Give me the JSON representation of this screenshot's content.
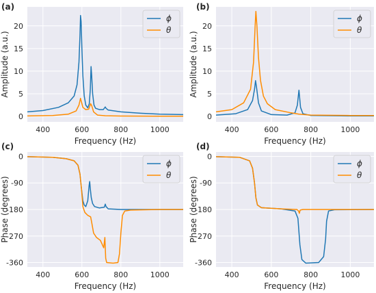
{
  "chart_data": [
    {
      "type": "line",
      "panel_label": "(a)",
      "xlabel": "Frequency (Hz)",
      "ylabel": "Amplitude (a.u.)",
      "xlim": [
        320,
        1120
      ],
      "ylim": [
        -1.2,
        24.2
      ],
      "xticks": [
        400,
        600,
        800,
        1000
      ],
      "yticks": [
        0,
        5,
        10,
        15,
        20
      ],
      "ytick_labels": [
        "0",
        "5",
        "10",
        "15",
        "20"
      ],
      "grid": true,
      "legend": "top-right",
      "series": [
        {
          "name": "ϕ",
          "color": "#1f77b4",
          "points": [
            [
              320,
              1.0
            ],
            [
              400,
              1.3
            ],
            [
              480,
              2.0
            ],
            [
              530,
              3.0
            ],
            [
              560,
              4.5
            ],
            [
              575,
              7.0
            ],
            [
              585,
              12.0
            ],
            [
              590,
              18.0
            ],
            [
              593,
              22.3
            ],
            [
              596,
              21.0
            ],
            [
              600,
              15.0
            ],
            [
              605,
              9.0
            ],
            [
              612,
              4.5
            ],
            [
              620,
              2.5
            ],
            [
              630,
              1.9
            ],
            [
              638,
              2.8
            ],
            [
              643,
              6.0
            ],
            [
              647,
              11.0
            ],
            [
              650,
              9.0
            ],
            [
              655,
              5.0
            ],
            [
              662,
              2.5
            ],
            [
              670,
              1.8
            ],
            [
              690,
              1.5
            ],
            [
              710,
              1.5
            ],
            [
              720,
              2.1
            ],
            [
              724,
              1.8
            ],
            [
              735,
              1.4
            ],
            [
              800,
              1.0
            ],
            [
              900,
              0.7
            ],
            [
              1000,
              0.5
            ],
            [
              1120,
              0.4
            ]
          ]
        },
        {
          "name": "θ",
          "color": "#ff8c00",
          "points": [
            [
              320,
              0.1
            ],
            [
              450,
              0.2
            ],
            [
              530,
              0.5
            ],
            [
              570,
              1.2
            ],
            [
              585,
              2.5
            ],
            [
              593,
              4.0
            ],
            [
              598,
              3.2
            ],
            [
              605,
              2.0
            ],
            [
              620,
              1.5
            ],
            [
              635,
              1.6
            ],
            [
              645,
              2.8
            ],
            [
              650,
              2.4
            ],
            [
              660,
              1.0
            ],
            [
              680,
              0.3
            ],
            [
              720,
              0.15
            ],
            [
              800,
              0.08
            ],
            [
              1000,
              0.05
            ],
            [
              1120,
              0.05
            ]
          ]
        }
      ]
    },
    {
      "type": "line",
      "panel_label": "(b)",
      "xlabel": "Frequency (Hz)",
      "ylabel": "Amplitude (a.u.)",
      "xlim": [
        320,
        1120
      ],
      "ylim": [
        -1.2,
        24.2
      ],
      "xticks": [
        400,
        600,
        800,
        1000
      ],
      "yticks": [
        0,
        5,
        10,
        15,
        20
      ],
      "ytick_labels": [
        "0",
        "5",
        "10",
        "15",
        "20"
      ],
      "grid": true,
      "legend": "top-right",
      "series": [
        {
          "name": "ϕ",
          "color": "#1f77b4",
          "points": [
            [
              320,
              0.3
            ],
            [
              420,
              0.6
            ],
            [
              480,
              1.5
            ],
            [
              505,
              3.5
            ],
            [
              515,
              6.0
            ],
            [
              520,
              7.9
            ],
            [
              525,
              6.5
            ],
            [
              535,
              3.0
            ],
            [
              550,
              1.2
            ],
            [
              600,
              0.4
            ],
            [
              680,
              0.3
            ],
            [
              720,
              0.8
            ],
            [
              732,
              2.5
            ],
            [
              738,
              5.0
            ],
            [
              740,
              5.8
            ],
            [
              743,
              4.5
            ],
            [
              748,
              2.0
            ],
            [
              760,
              0.6
            ],
            [
              800,
              0.2
            ],
            [
              1000,
              0.1
            ],
            [
              1120,
              0.1
            ]
          ]
        },
        {
          "name": "θ",
          "color": "#ff8c00",
          "points": [
            [
              320,
              1.0
            ],
            [
              400,
              1.5
            ],
            [
              460,
              3.0
            ],
            [
              495,
              6.0
            ],
            [
              510,
              12.0
            ],
            [
              518,
              20.0
            ],
            [
              522,
              23.2
            ],
            [
              527,
              20.0
            ],
            [
              535,
              13.0
            ],
            [
              545,
              8.0
            ],
            [
              560,
              4.5
            ],
            [
              580,
              2.8
            ],
            [
              620,
              1.5
            ],
            [
              700,
              0.8
            ],
            [
              740,
              0.5
            ],
            [
              800,
              0.3
            ],
            [
              1000,
              0.2
            ],
            [
              1120,
              0.2
            ]
          ]
        }
      ]
    },
    {
      "type": "line",
      "panel_label": "(c)",
      "xlabel": "Frequency (Hz)",
      "ylabel": "Phase (degrees)",
      "xlim": [
        320,
        1120
      ],
      "ylim": [
        -375,
        15
      ],
      "xticks": [
        400,
        600,
        800,
        1000
      ],
      "yticks": [
        0,
        -90,
        -180,
        -270,
        -360
      ],
      "ytick_labels": [
        "0",
        "-90",
        "-180",
        "-270",
        "-360"
      ],
      "grid": true,
      "legend": "top-right",
      "series": [
        {
          "name": "ϕ",
          "color": "#1f77b4",
          "points": [
            [
              320,
              -1
            ],
            [
              450,
              -3
            ],
            [
              520,
              -8
            ],
            [
              560,
              -15
            ],
            [
              580,
              -30
            ],
            [
              590,
              -60
            ],
            [
              598,
              -110
            ],
            [
              605,
              -150
            ],
            [
              612,
              -165
            ],
            [
              620,
              -170
            ],
            [
              630,
              -150
            ],
            [
              637,
              -100
            ],
            [
              640,
              -85
            ],
            [
              643,
              -110
            ],
            [
              648,
              -140
            ],
            [
              655,
              -160
            ],
            [
              665,
              -170
            ],
            [
              690,
              -175
            ],
            [
              715,
              -172
            ],
            [
              720,
              -162
            ],
            [
              724,
              -170
            ],
            [
              735,
              -178
            ],
            [
              800,
              -180
            ],
            [
              1000,
              -180
            ],
            [
              1120,
              -180
            ]
          ]
        },
        {
          "name": "θ",
          "color": "#ff8c00",
          "points": [
            [
              320,
              -1
            ],
            [
              450,
              -3
            ],
            [
              520,
              -8
            ],
            [
              560,
              -15
            ],
            [
              580,
              -30
            ],
            [
              590,
              -60
            ],
            [
              598,
              -110
            ],
            [
              605,
              -170
            ],
            [
              615,
              -190
            ],
            [
              630,
              -200
            ],
            [
              645,
              -205
            ],
            [
              652,
              -230
            ],
            [
              660,
              -260
            ],
            [
              675,
              -275
            ],
            [
              695,
              -285
            ],
            [
              712,
              -310
            ],
            [
              718,
              -275
            ],
            [
              722,
              -345
            ],
            [
              727,
              -360
            ],
            [
              760,
              -362
            ],
            [
              785,
              -360
            ],
            [
              793,
              -330
            ],
            [
              800,
              -260
            ],
            [
              808,
              -200
            ],
            [
              820,
              -185
            ],
            [
              850,
              -182
            ],
            [
              1000,
              -180
            ],
            [
              1120,
              -180
            ]
          ]
        }
      ]
    },
    {
      "type": "line",
      "panel_label": "(d)",
      "xlabel": "Frequency (Hz)",
      "ylabel": "Phase (degrees)",
      "xlim": [
        320,
        1120
      ],
      "ylim": [
        -375,
        15
      ],
      "xticks": [
        400,
        600,
        800,
        1000
      ],
      "yticks": [
        0,
        -90,
        -180,
        -270,
        -360
      ],
      "ytick_labels": [
        "0",
        "-90",
        "-180",
        "-270",
        "-360"
      ],
      "grid": true,
      "legend": "top-right",
      "series": [
        {
          "name": "ϕ",
          "color": "#1f77b4",
          "points": [
            [
              320,
              -1
            ],
            [
              440,
              -3
            ],
            [
              490,
              -15
            ],
            [
              505,
              -40
            ],
            [
              515,
              -90
            ],
            [
              522,
              -140
            ],
            [
              530,
              -165
            ],
            [
              550,
              -174
            ],
            [
              650,
              -178
            ],
            [
              720,
              -185
            ],
            [
              735,
              -210
            ],
            [
              745,
              -300
            ],
            [
              755,
              -350
            ],
            [
              775,
              -362
            ],
            [
              840,
              -360
            ],
            [
              865,
              -340
            ],
            [
              875,
              -280
            ],
            [
              880,
              -220
            ],
            [
              890,
              -185
            ],
            [
              920,
              -181
            ],
            [
              1120,
              -180
            ]
          ]
        },
        {
          "name": "θ",
          "color": "#ff8c00",
          "points": [
            [
              320,
              -1
            ],
            [
              440,
              -3
            ],
            [
              490,
              -15
            ],
            [
              505,
              -40
            ],
            [
              515,
              -90
            ],
            [
              522,
              -140
            ],
            [
              530,
              -165
            ],
            [
              550,
              -174
            ],
            [
              650,
              -178
            ],
            [
              730,
              -180
            ],
            [
              738,
              -185
            ],
            [
              742,
              -193
            ],
            [
              746,
              -182
            ],
            [
              760,
              -180
            ],
            [
              1120,
              -180
            ]
          ]
        }
      ]
    }
  ]
}
